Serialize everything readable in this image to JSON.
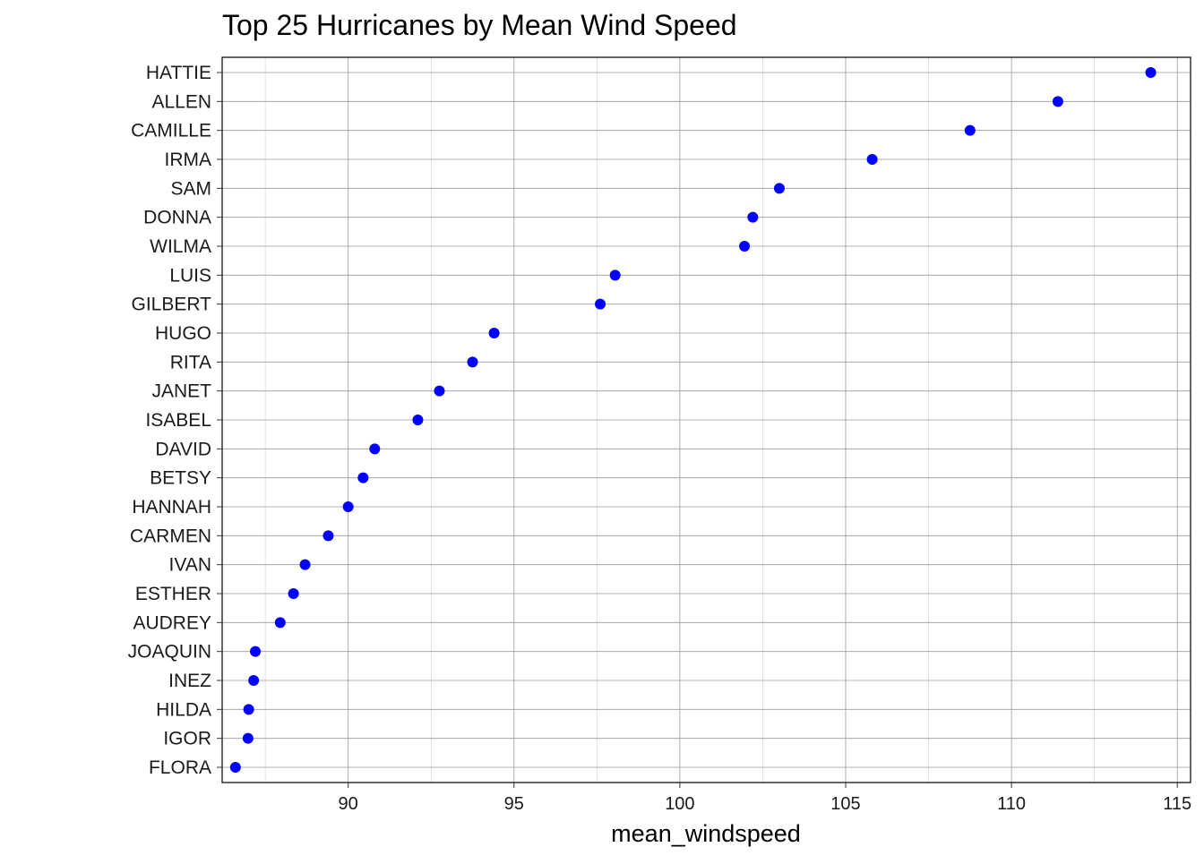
{
  "chart_data": {
    "type": "scatter",
    "title": "Top 25 Hurricanes by Mean Wind Speed",
    "xlabel": "mean_windspeed",
    "ylabel": "",
    "xlim": [
      86.2,
      115.4
    ],
    "xticks": [
      90,
      95,
      100,
      105,
      110,
      115
    ],
    "grid": true,
    "point_color": "#0000ff",
    "categories": [
      "HATTIE",
      "ALLEN",
      "CAMILLE",
      "IRMA",
      "SAM",
      "DONNA",
      "WILMA",
      "LUIS",
      "GILBERT",
      "HUGO",
      "RITA",
      "JANET",
      "ISABEL",
      "DAVID",
      "BETSY",
      "HANNAH",
      "CARMEN",
      "IVAN",
      "ESTHER",
      "AUDREY",
      "JOAQUIN",
      "INEZ",
      "HILDA",
      "IGOR",
      "FLORA"
    ],
    "values": [
      114.2,
      111.4,
      108.75,
      105.8,
      103.0,
      102.2,
      101.95,
      98.05,
      97.6,
      94.4,
      93.75,
      92.75,
      92.1,
      90.8,
      90.45,
      90.0,
      89.4,
      88.7,
      88.35,
      87.95,
      87.2,
      87.15,
      87.0,
      86.98,
      86.6
    ]
  }
}
